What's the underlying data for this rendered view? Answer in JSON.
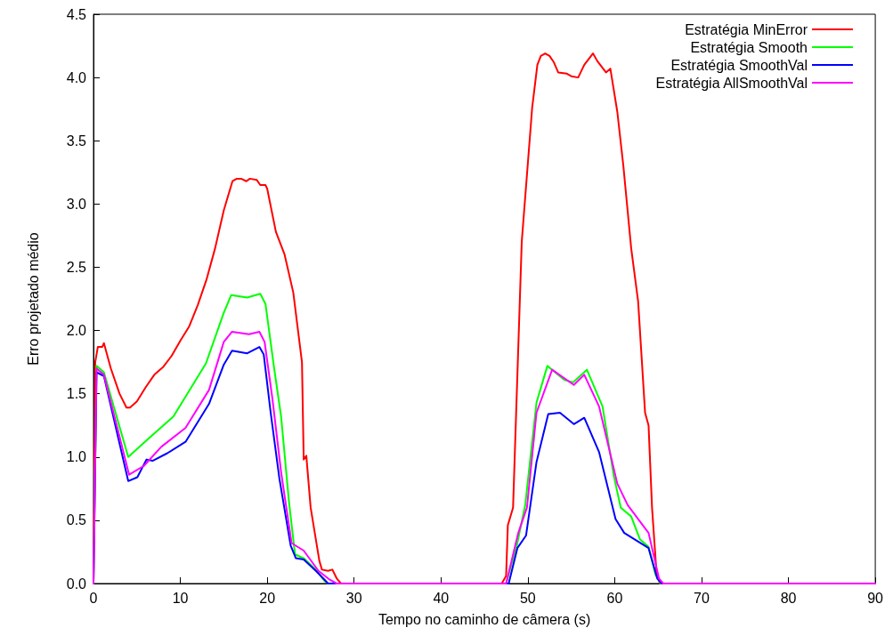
{
  "chart_data": {
    "type": "line",
    "xlabel": "Tempo no caminho de câmera (s)",
    "ylabel": "Erro projetado médio",
    "xlim": [
      0,
      90
    ],
    "xticks": [
      0,
      10,
      20,
      30,
      40,
      50,
      60,
      70,
      80,
      90
    ],
    "ylim": [
      0,
      4.5
    ],
    "yticks": [
      {
        "value": 0,
        "label": "0.0"
      },
      {
        "value": 0.5,
        "label": "0.5"
      },
      {
        "value": 1,
        "label": "1.0"
      },
      {
        "value": 1.5,
        "label": "1.5"
      },
      {
        "value": 2,
        "label": "2.0"
      },
      {
        "value": 2.5,
        "label": "2.5"
      },
      {
        "value": 3,
        "label": "3.0"
      },
      {
        "value": 3.5,
        "label": "3.5"
      },
      {
        "value": 4,
        "label": "4.0"
      },
      {
        "value": 4.5,
        "label": "4.5"
      }
    ],
    "grid": false,
    "legend": "top right",
    "marker": "none",
    "line_style": "solid",
    "series": [
      {
        "name": "Estratégia MinError",
        "color": "#ff0000",
        "x": [
          0,
          0.2,
          0.5,
          1,
          1.2,
          2,
          3,
          3.8,
          4.2,
          5,
          6,
          7,
          8,
          9,
          10,
          11,
          12,
          13,
          14,
          15,
          16,
          16.5,
          17,
          17.6,
          18,
          18.8,
          19.2,
          19.8,
          20,
          20.5,
          21,
          22,
          23,
          24,
          24.2,
          24.5,
          25,
          26,
          26.3,
          27,
          27.5,
          28,
          28.5,
          47,
          47.5,
          47.7,
          48.3,
          49.3,
          50.5,
          51.1,
          51.5,
          52,
          52.5,
          53,
          53.5,
          54.5,
          55,
          55.8,
          56.5,
          57.5,
          58,
          59,
          59.5,
          60.3,
          61,
          61.9,
          62.7,
          63.5,
          63.9,
          64.3,
          64.8,
          65.2,
          90
        ],
        "values": [
          0,
          1.75,
          1.87,
          1.87,
          1.9,
          1.7,
          1.5,
          1.39,
          1.39,
          1.44,
          1.55,
          1.65,
          1.71,
          1.8,
          1.92,
          2.03,
          2.2,
          2.4,
          2.65,
          2.95,
          3.18,
          3.2,
          3.2,
          3.18,
          3.2,
          3.19,
          3.15,
          3.15,
          3.12,
          2.95,
          2.78,
          2.6,
          2.3,
          1.75,
          0.98,
          1.01,
          0.6,
          0.18,
          0.11,
          0.1,
          0.11,
          0.04,
          0,
          0,
          0.06,
          0.46,
          0.6,
          2.7,
          3.76,
          4.1,
          4.17,
          4.19,
          4.17,
          4.12,
          4.04,
          4.03,
          4.01,
          4,
          4.1,
          4.19,
          4.13,
          4.04,
          4.07,
          3.73,
          3.3,
          2.65,
          2.23,
          1.35,
          1.25,
          0.6,
          0.1,
          0,
          0
        ]
      },
      {
        "name": "Estratégia Smooth",
        "color": "#00ff00",
        "x": [
          0,
          0.35,
          1.2,
          4,
          6.4,
          9.2,
          12.95,
          15,
          15.85,
          17.7,
          19.2,
          19.8,
          20.8,
          21.6,
          22.5,
          23.2,
          24.2,
          25.6,
          26.6,
          27,
          47.5,
          48.7,
          49.7,
          51,
          52.25,
          54.2,
          55.2,
          56.8,
          58.6,
          59.9,
          60.7,
          61.9,
          62.9,
          63.9,
          64.7,
          65.3,
          90
        ],
        "values": [
          0,
          1.72,
          1.67,
          1,
          1.15,
          1.32,
          1.74,
          2.14,
          2.28,
          2.26,
          2.29,
          2.21,
          1.7,
          1.32,
          0.65,
          0.23,
          0.2,
          0.11,
          0.02,
          0,
          0,
          0.29,
          0.62,
          1.43,
          1.72,
          1.61,
          1.59,
          1.69,
          1.4,
          0.85,
          0.6,
          0.53,
          0.35,
          0.29,
          0.07,
          0,
          0
        ]
      },
      {
        "name": "Estratégia SmoothVal",
        "color": "#0000ff",
        "x": [
          0,
          0.35,
          1.2,
          4,
          5.05,
          6.1,
          6.8,
          8.5,
          10.6,
          13.3,
          15,
          15.95,
          17.7,
          19.1,
          19.6,
          20.4,
          21.4,
          22.7,
          23.3,
          24.2,
          25.6,
          26.6,
          27,
          47.8,
          48.8,
          49.8,
          51,
          52.35,
          53.7,
          55.3,
          56.5,
          58.2,
          60.1,
          61.1,
          63.9,
          64.9,
          65.4,
          90
        ],
        "values": [
          0,
          1.67,
          1.64,
          0.81,
          0.84,
          0.98,
          0.97,
          1.03,
          1.12,
          1.42,
          1.73,
          1.84,
          1.82,
          1.87,
          1.81,
          1.35,
          0.83,
          0.3,
          0.2,
          0.19,
          0.1,
          0.03,
          0,
          0,
          0.28,
          0.38,
          0.96,
          1.34,
          1.35,
          1.26,
          1.31,
          1.04,
          0.51,
          0.4,
          0.28,
          0.04,
          0,
          0
        ]
      },
      {
        "name": "Estratégia AllSmoothVal",
        "color": "#ff00ff",
        "x": [
          0,
          0.35,
          1.2,
          4.1,
          5.8,
          7.8,
          10.6,
          13.3,
          15,
          15.95,
          17.9,
          19.1,
          19.7,
          20.6,
          21.6,
          22.8,
          24.2,
          25.9,
          27.2,
          28,
          47.5,
          48.9,
          49.9,
          51,
          52.8,
          55.3,
          56.5,
          58.2,
          60.3,
          61.5,
          63.9,
          65.1,
          65.6,
          90
        ],
        "values": [
          0,
          1.7,
          1.65,
          0.86,
          0.93,
          1.08,
          1.23,
          1.53,
          1.91,
          1.99,
          1.97,
          1.99,
          1.91,
          1.46,
          0.88,
          0.32,
          0.26,
          0.1,
          0.03,
          0,
          0,
          0.4,
          0.6,
          1.35,
          1.69,
          1.57,
          1.65,
          1.4,
          0.79,
          0.62,
          0.4,
          0.04,
          0,
          0
        ]
      }
    ]
  }
}
